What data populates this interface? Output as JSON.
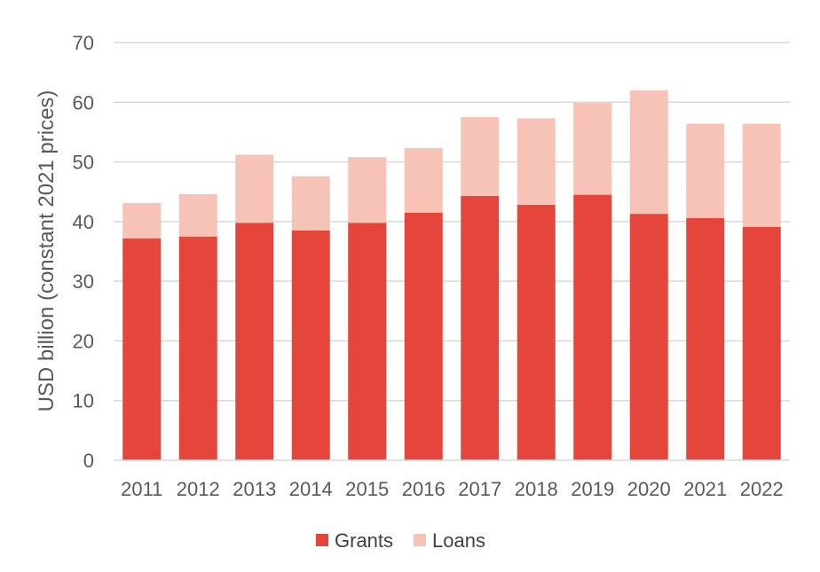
{
  "chart_data": {
    "type": "bar",
    "stacked": true,
    "title": "",
    "xlabel": "",
    "ylabel": "USD billion (constant 2021 prices)",
    "ylim": [
      0,
      70
    ],
    "yticks": [
      0,
      10,
      20,
      30,
      40,
      50,
      60,
      70
    ],
    "grid": true,
    "legend_position": "bottom",
    "categories": [
      "2011",
      "2012",
      "2013",
      "2014",
      "2015",
      "2016",
      "2017",
      "2018",
      "2019",
      "2020",
      "2021",
      "2022"
    ],
    "series": [
      {
        "name": "Grants",
        "color": "#E5453B",
        "values": [
          37.2,
          37.5,
          39.8,
          38.5,
          39.8,
          41.5,
          44.3,
          42.8,
          44.5,
          41.3,
          40.6,
          39.1
        ]
      },
      {
        "name": "Loans",
        "color": "#F6C3B6",
        "values": [
          5.9,
          7.1,
          11.4,
          9.1,
          11.0,
          10.8,
          13.2,
          14.5,
          15.4,
          20.7,
          15.8,
          17.3
        ]
      }
    ]
  }
}
